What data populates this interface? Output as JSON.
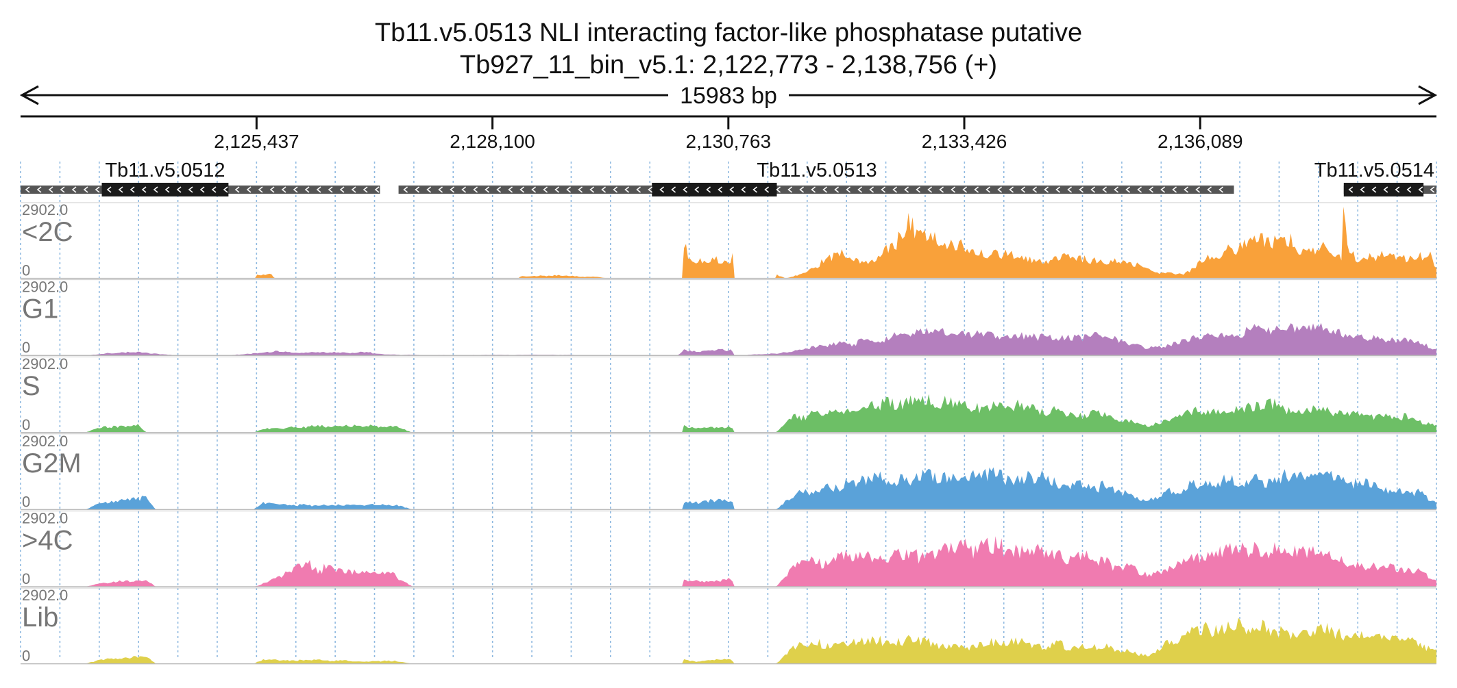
{
  "chart_data": {
    "type": "area",
    "title": "Tb11.v5.0513  NLI interacting factor-like phosphatase  putative",
    "subtitle": "Tb927_11_bin_v5.1: 2,122,773 - 2,138,756 (+)",
    "span_label": "15983 bp",
    "x_range": [
      2122773,
      2138756
    ],
    "x_ticks": [
      {
        "value": 2125437,
        "label": "2,125,437"
      },
      {
        "value": 2128100,
        "label": "2,128,100"
      },
      {
        "value": 2130763,
        "label": "2,130,763"
      },
      {
        "value": 2133426,
        "label": "2,133,426"
      },
      {
        "value": 2136089,
        "label": "2,136,089"
      }
    ],
    "genes": [
      {
        "name": "Tb11.v5.0512",
        "start": 2122773,
        "end": 2126830,
        "cds_start": 2123690,
        "cds_end": 2125120,
        "strand": "-"
      },
      {
        "name": "Tb11.v5.0513",
        "start": 2127040,
        "end": 2136470,
        "cds_start": 2129900,
        "cds_end": 2131310,
        "strand": "-"
      },
      {
        "name": "Tb11.v5.0514",
        "start": 2137710,
        "end": 2138756,
        "cds_start": 2137710,
        "cds_end": 2138610,
        "strand": "-"
      }
    ],
    "y_range": [
      0,
      2902.0
    ],
    "y_max_label": "2902.0",
    "y_min_label": "0",
    "grid": true,
    "series": [
      {
        "name": "<2C",
        "color": "#F9A13A",
        "profile": [
          [
            2122773,
            0
          ],
          [
            2125420,
            0
          ],
          [
            2125430,
            160
          ],
          [
            2125620,
            160
          ],
          [
            2125630,
            0
          ],
          [
            2128400,
            0
          ],
          [
            2128410,
            90
          ],
          [
            2128850,
            130
          ],
          [
            2129000,
            90
          ],
          [
            2129300,
            60
          ],
          [
            2129400,
            0
          ],
          [
            2130240,
            0
          ],
          [
            2130250,
            1450
          ],
          [
            2130400,
            800
          ],
          [
            2130600,
            1000
          ],
          [
            2130800,
            700
          ],
          [
            2130820,
            1500
          ],
          [
            2130830,
            0
          ],
          [
            2131290,
            0
          ],
          [
            2131300,
            150
          ],
          [
            2131410,
            0
          ],
          [
            2131600,
            200
          ],
          [
            2131800,
            650
          ],
          [
            2132000,
            1000
          ],
          [
            2132300,
            800
          ],
          [
            2132600,
            1150
          ],
          [
            2132800,
            2900
          ],
          [
            2133000,
            1600
          ],
          [
            2133500,
            1300
          ],
          [
            2134200,
            900
          ],
          [
            2135200,
            750
          ],
          [
            2135600,
            250
          ],
          [
            2135900,
            200
          ],
          [
            2136200,
            900
          ],
          [
            2136700,
            1900
          ],
          [
            2137200,
            1400
          ],
          [
            2137600,
            1100
          ],
          [
            2137690,
            900
          ],
          [
            2137700,
            2900
          ],
          [
            2137760,
            1000
          ],
          [
            2138300,
            900
          ],
          [
            2138700,
            1000
          ],
          [
            2138756,
            400
          ]
        ]
      },
      {
        "name": "G1",
        "color": "#B47FBE",
        "profile": [
          [
            2122773,
            0
          ],
          [
            2123500,
            0
          ],
          [
            2123700,
            80
          ],
          [
            2124100,
            150
          ],
          [
            2124200,
            100
          ],
          [
            2124500,
            20
          ],
          [
            2125100,
            0
          ],
          [
            2125400,
            100
          ],
          [
            2125600,
            160
          ],
          [
            2126000,
            120
          ],
          [
            2126400,
            130
          ],
          [
            2126700,
            140
          ],
          [
            2126900,
            40
          ],
          [
            2127300,
            20
          ],
          [
            2128800,
            30
          ],
          [
            2129300,
            10
          ],
          [
            2130200,
            20
          ],
          [
            2130260,
            250
          ],
          [
            2130400,
            200
          ],
          [
            2130800,
            260
          ],
          [
            2130830,
            0
          ],
          [
            2131300,
            80
          ],
          [
            2131600,
            300
          ],
          [
            2132000,
            500
          ],
          [
            2132500,
            700
          ],
          [
            2133000,
            1100
          ],
          [
            2133500,
            900
          ],
          [
            2134000,
            1000
          ],
          [
            2134500,
            700
          ],
          [
            2135000,
            800
          ],
          [
            2135500,
            300
          ],
          [
            2136000,
            750
          ],
          [
            2136500,
            1000
          ],
          [
            2137000,
            1100
          ],
          [
            2137500,
            1200
          ],
          [
            2138000,
            800
          ],
          [
            2138500,
            600
          ],
          [
            2138756,
            300
          ]
        ]
      },
      {
        "name": "S",
        "color": "#6DBF66",
        "profile": [
          [
            2122773,
            0
          ],
          [
            2123500,
            0
          ],
          [
            2123700,
            250
          ],
          [
            2124100,
            300
          ],
          [
            2124200,
            0
          ],
          [
            2125400,
            0
          ],
          [
            2125500,
            150
          ],
          [
            2126000,
            250
          ],
          [
            2126500,
            300
          ],
          [
            2127000,
            250
          ],
          [
            2127200,
            0
          ],
          [
            2130250,
            0
          ],
          [
            2130260,
            300
          ],
          [
            2130400,
            200
          ],
          [
            2130800,
            250
          ],
          [
            2130830,
            0
          ],
          [
            2131300,
            0
          ],
          [
            2131500,
            700
          ],
          [
            2132000,
            1000
          ],
          [
            2132500,
            1200
          ],
          [
            2133000,
            1400
          ],
          [
            2133500,
            1100
          ],
          [
            2134000,
            1200
          ],
          [
            2134500,
            900
          ],
          [
            2135000,
            800
          ],
          [
            2135500,
            300
          ],
          [
            2136000,
            900
          ],
          [
            2136500,
            1000
          ],
          [
            2137000,
            1200
          ],
          [
            2137500,
            1000
          ],
          [
            2138000,
            800
          ],
          [
            2138500,
            600
          ],
          [
            2138756,
            300
          ]
        ]
      },
      {
        "name": "G2M",
        "color": "#5AA2D9",
        "profile": [
          [
            2122773,
            0
          ],
          [
            2123500,
            0
          ],
          [
            2123700,
            350
          ],
          [
            2124000,
            450
          ],
          [
            2124200,
            500
          ],
          [
            2124300,
            0
          ],
          [
            2125400,
            0
          ],
          [
            2125500,
            300
          ],
          [
            2126000,
            200
          ],
          [
            2126500,
            200
          ],
          [
            2127000,
            200
          ],
          [
            2127200,
            0
          ],
          [
            2130250,
            0
          ],
          [
            2130260,
            300
          ],
          [
            2130500,
            300
          ],
          [
            2130800,
            500
          ],
          [
            2130830,
            0
          ],
          [
            2131300,
            0
          ],
          [
            2131500,
            700
          ],
          [
            2132000,
            1000
          ],
          [
            2132500,
            1300
          ],
          [
            2133000,
            1600
          ],
          [
            2133500,
            1400
          ],
          [
            2134000,
            1500
          ],
          [
            2134500,
            1200
          ],
          [
            2135000,
            1000
          ],
          [
            2135500,
            400
          ],
          [
            2136000,
            1100
          ],
          [
            2136500,
            1200
          ],
          [
            2137000,
            1400
          ],
          [
            2137500,
            1500
          ],
          [
            2138000,
            1000
          ],
          [
            2138500,
            800
          ],
          [
            2138756,
            300
          ]
        ]
      },
      {
        "name": ">4C",
        "color": "#F07BB0",
        "profile": [
          [
            2122773,
            0
          ],
          [
            2123500,
            0
          ],
          [
            2123700,
            150
          ],
          [
            2124000,
            250
          ],
          [
            2124200,
            300
          ],
          [
            2124300,
            0
          ],
          [
            2125400,
            0
          ],
          [
            2125500,
            100
          ],
          [
            2126000,
            900
          ],
          [
            2126500,
            600
          ],
          [
            2127000,
            500
          ],
          [
            2127200,
            0
          ],
          [
            2130250,
            0
          ],
          [
            2130260,
            300
          ],
          [
            2130500,
            200
          ],
          [
            2130800,
            300
          ],
          [
            2130830,
            0
          ],
          [
            2131300,
            0
          ],
          [
            2131500,
            900
          ],
          [
            2132000,
            1200
          ],
          [
            2132500,
            1300
          ],
          [
            2133000,
            1500
          ],
          [
            2133500,
            1600
          ],
          [
            2134000,
            1800
          ],
          [
            2134500,
            1400
          ],
          [
            2135000,
            1100
          ],
          [
            2135500,
            500
          ],
          [
            2136000,
            1300
          ],
          [
            2136500,
            1500
          ],
          [
            2137000,
            1700
          ],
          [
            2137500,
            1300
          ],
          [
            2138000,
            1000
          ],
          [
            2138500,
            800
          ],
          [
            2138756,
            300
          ]
        ]
      },
      {
        "name": "Lib",
        "color": "#DFD04B",
        "profile": [
          [
            2122773,
            0
          ],
          [
            2123500,
            0
          ],
          [
            2123700,
            200
          ],
          [
            2124000,
            250
          ],
          [
            2124200,
            300
          ],
          [
            2124300,
            0
          ],
          [
            2125400,
            0
          ],
          [
            2125500,
            200
          ],
          [
            2126000,
            150
          ],
          [
            2126500,
            120
          ],
          [
            2127000,
            120
          ],
          [
            2127200,
            0
          ],
          [
            2130250,
            0
          ],
          [
            2130260,
            200
          ],
          [
            2130400,
            100
          ],
          [
            2130800,
            200
          ],
          [
            2130830,
            0
          ],
          [
            2131300,
            0
          ],
          [
            2131500,
            800
          ],
          [
            2132000,
            950
          ],
          [
            2132500,
            1000
          ],
          [
            2133000,
            900
          ],
          [
            2133500,
            800
          ],
          [
            2134000,
            900
          ],
          [
            2134500,
            800
          ],
          [
            2135000,
            700
          ],
          [
            2135500,
            400
          ],
          [
            2136000,
            1400
          ],
          [
            2136500,
            1600
          ],
          [
            2137000,
            1500
          ],
          [
            2137500,
            1500
          ],
          [
            2138000,
            1300
          ],
          [
            2138500,
            1000
          ],
          [
            2138756,
            500
          ]
        ]
      }
    ]
  }
}
